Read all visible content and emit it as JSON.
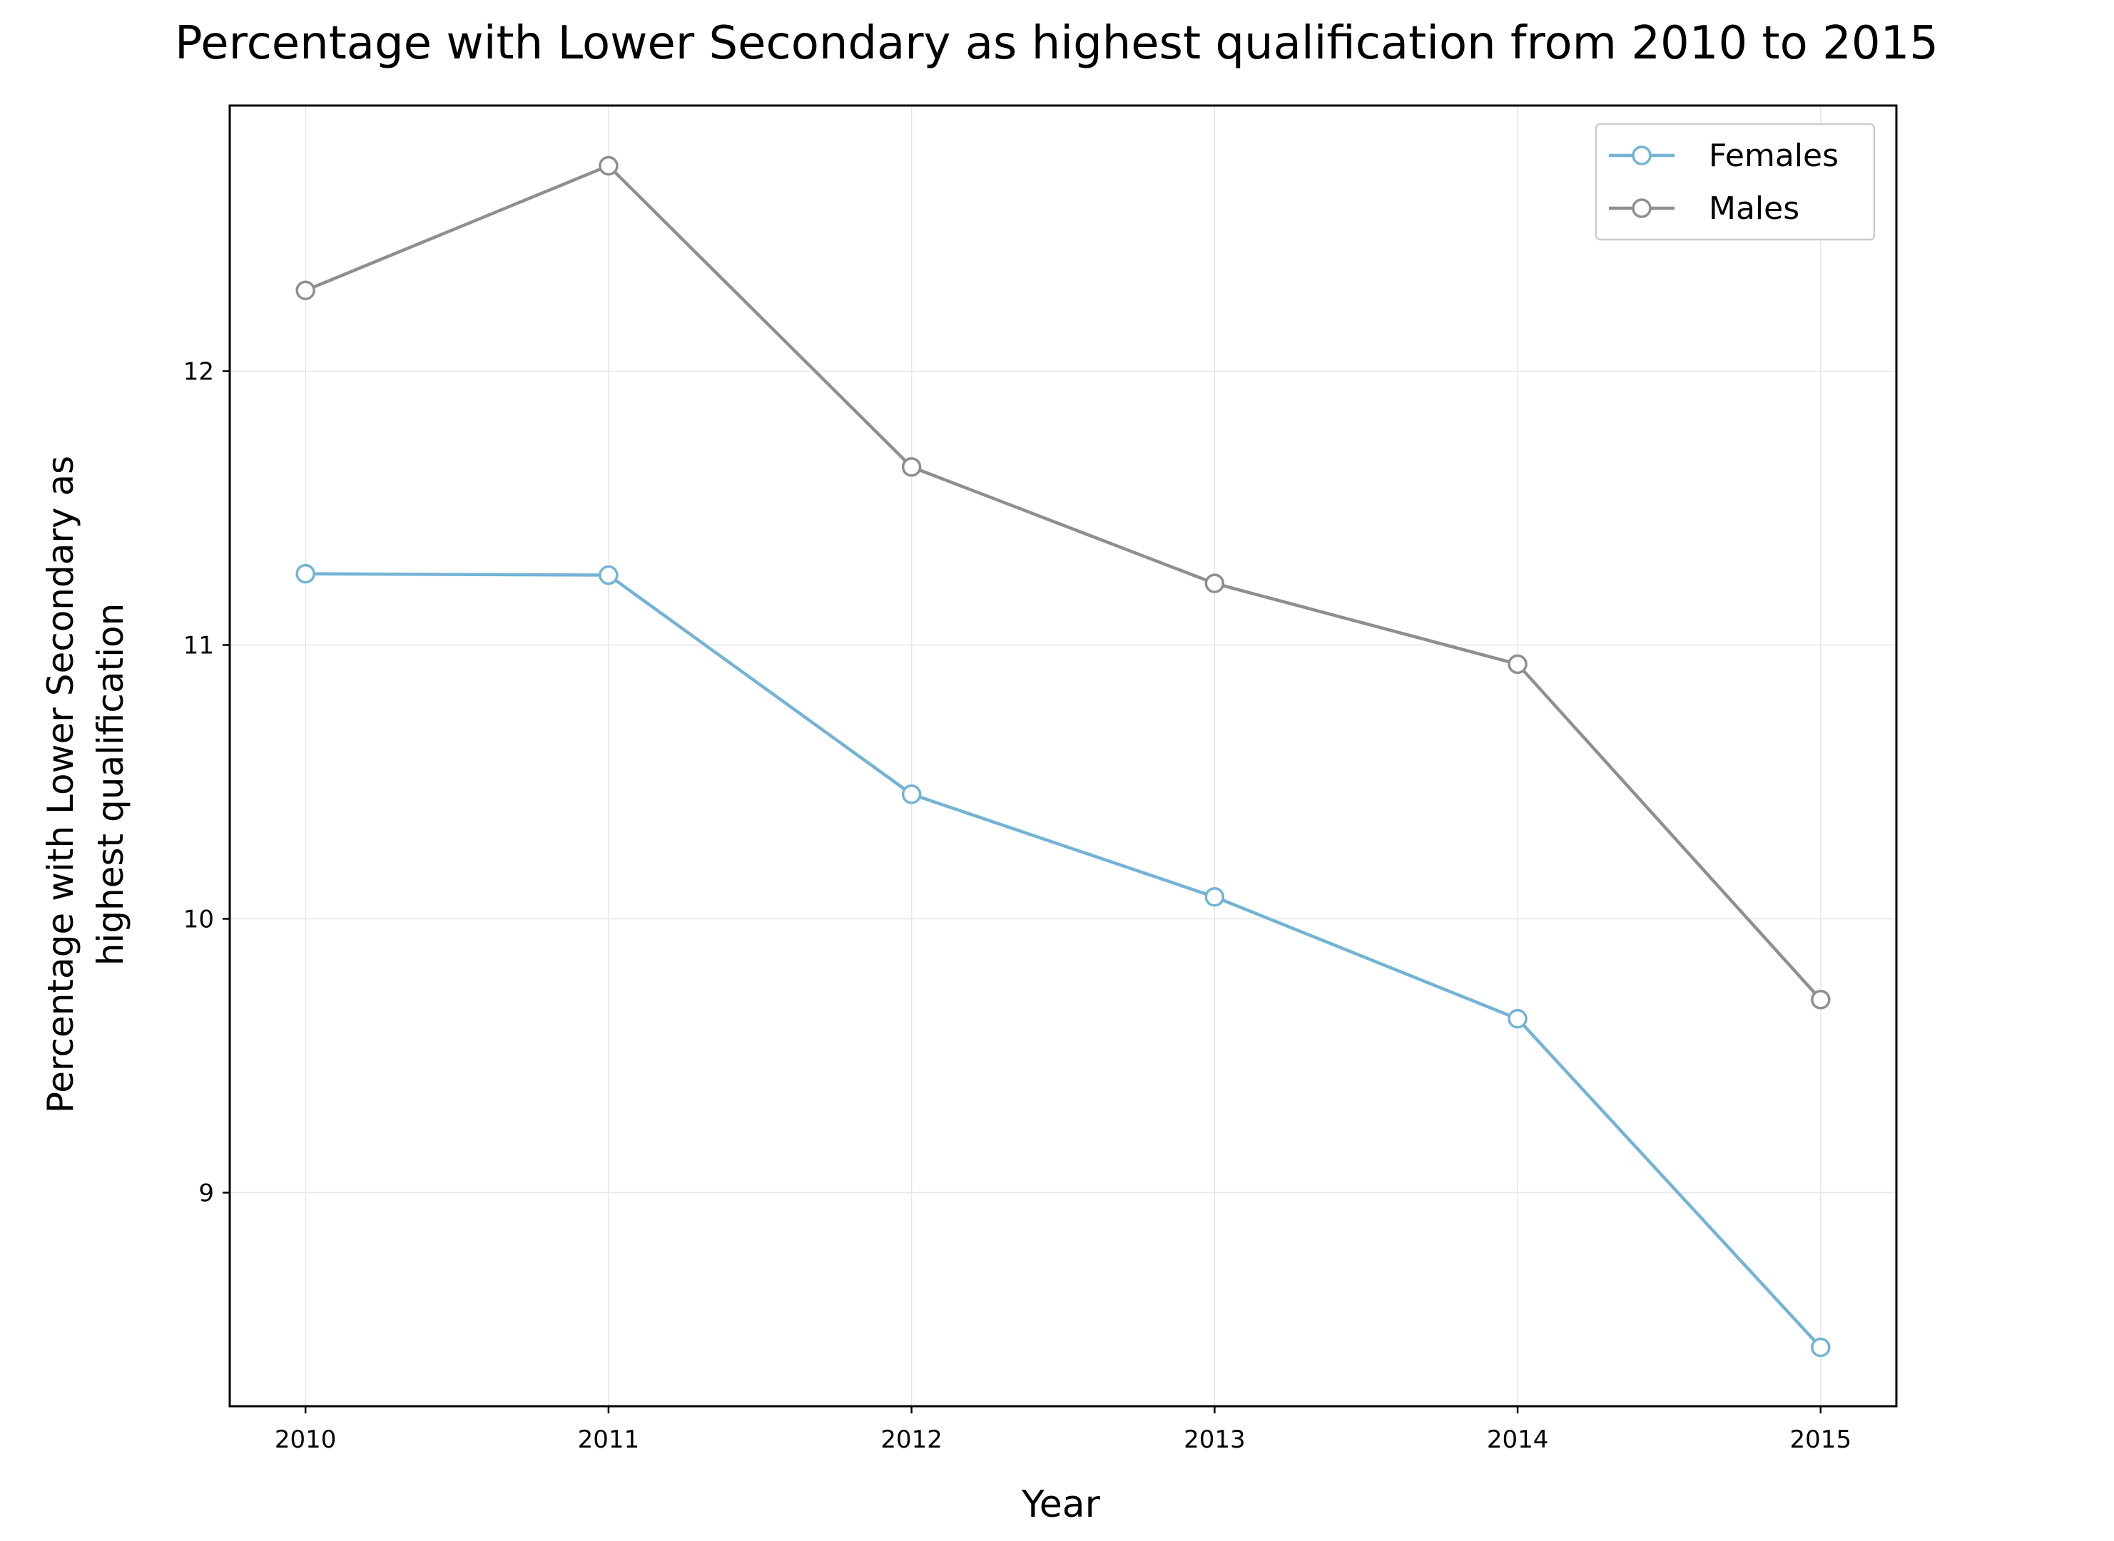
{
  "chart_data": {
    "type": "line",
    "title": "Percentage with Lower Secondary as highest qualification from 2010 to 2015",
    "xlabel": "Year",
    "ylabel_lines": [
      "Percentage with Lower Secondary as",
      "highest qualification"
    ],
    "x": [
      2010,
      2011,
      2012,
      2013,
      2014,
      2015
    ],
    "x_tick_labels": [
      "2010",
      "2011",
      "2012",
      "2013",
      "2014",
      "2015"
    ],
    "xlim": [
      2009.75,
      2015.25
    ],
    "y_ticks": [
      9,
      10,
      11,
      12
    ],
    "y_tick_labels": [
      "9",
      "10",
      "11",
      "12"
    ],
    "ylim": [
      8.22,
      12.97
    ],
    "grid": true,
    "legend_position": "top-right",
    "series": [
      {
        "name": "Females",
        "color": "#74b3d6",
        "values": [
          11.26,
          11.255,
          10.455,
          10.08,
          9.635,
          8.435
        ]
      },
      {
        "name": "Males",
        "color": "#8f8f8f",
        "values": [
          12.295,
          12.75,
          11.65,
          11.225,
          10.93,
          9.705
        ]
      }
    ]
  }
}
